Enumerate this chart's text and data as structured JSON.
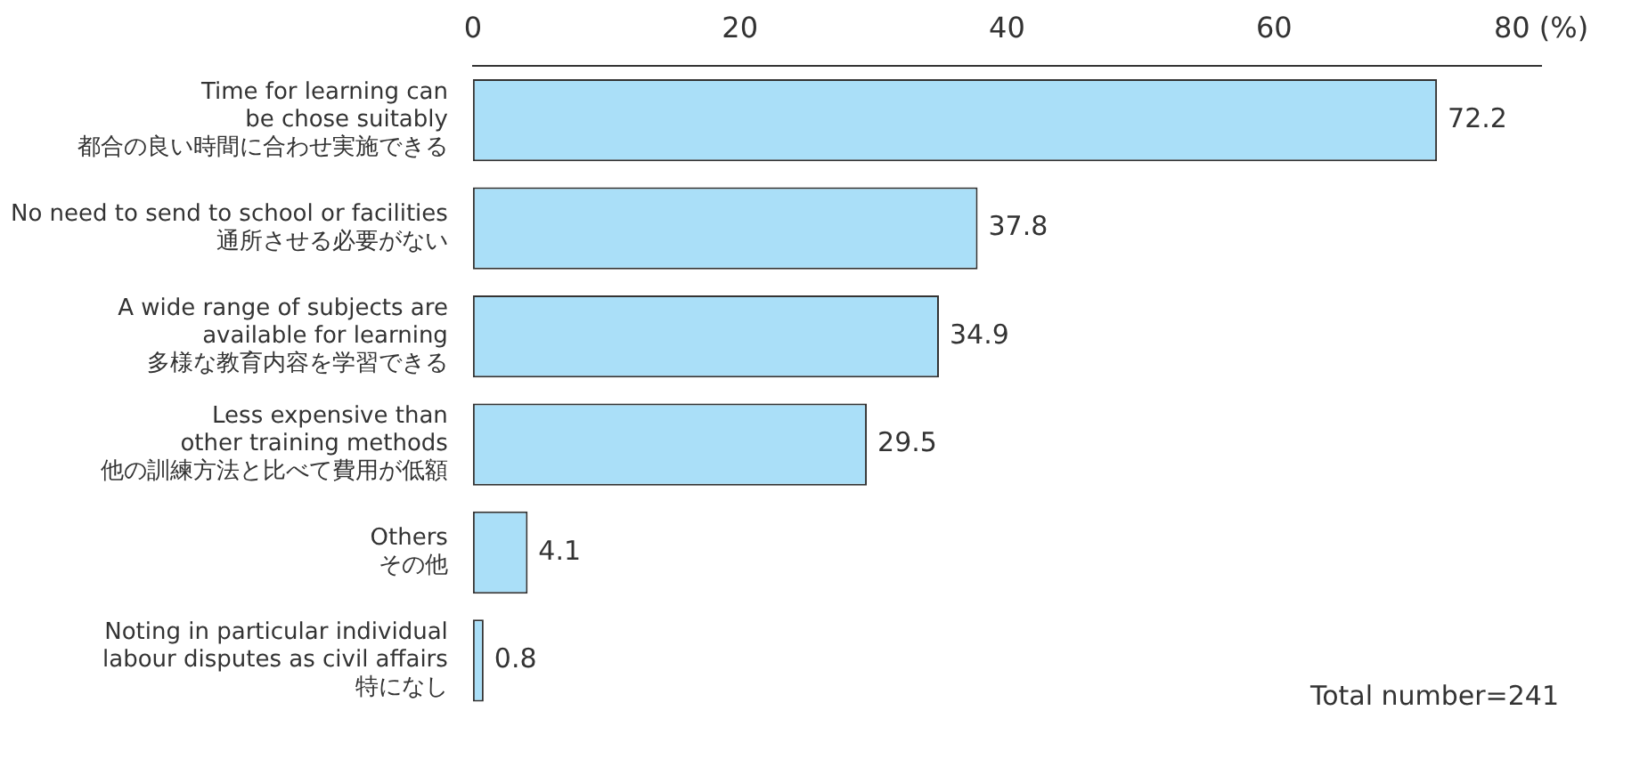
{
  "chart_data": {
    "type": "bar",
    "orientation": "horizontal",
    "categories": [
      "Time for learning can\nbe chose suitably\n都合の良い時間に合わせ実施できる",
      "No need to send to school or facilities\n通所させる必要がない",
      "A wide range of subjects are\navailable for learning\n多様な教育内容を学習できる",
      "Less expensive than\nother training methods\n他の訓練方法と比べて費用が低額",
      "Others\nその他",
      "Noting in particular individual\nlabour disputes as civil affairs\n特になし"
    ],
    "values": [
      72.2,
      37.8,
      34.9,
      29.5,
      4.1,
      0.8
    ],
    "color": "#aadff8",
    "xlim": [
      0,
      80
    ],
    "xticks": [
      0,
      20,
      40,
      60,
      {
        "value": 80,
        "label": "80 (%)"
      }
    ],
    "grid": false,
    "data_labels": true,
    "legend": false,
    "annotations": [
      "Total number=241"
    ]
  }
}
